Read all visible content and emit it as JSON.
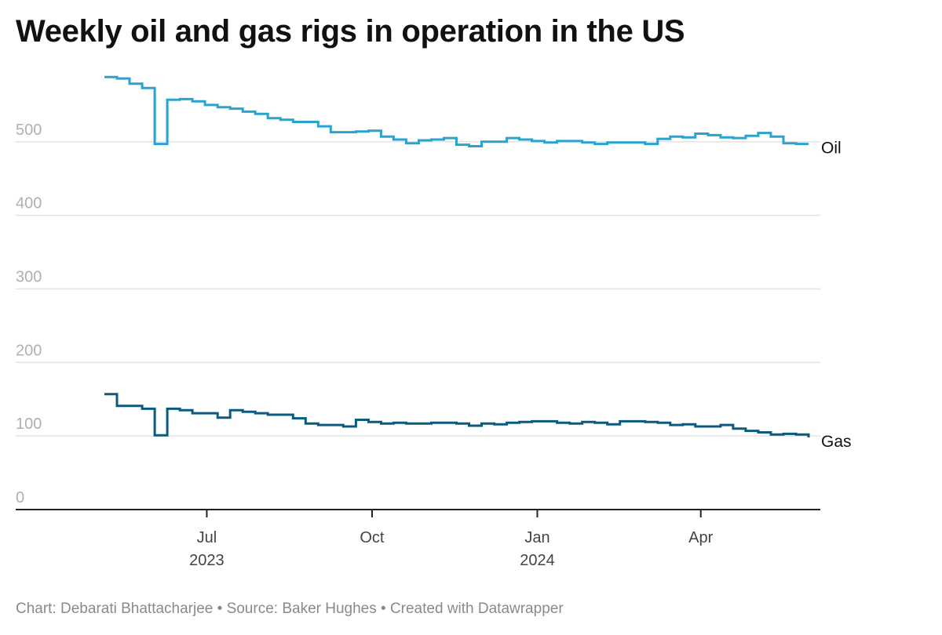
{
  "chart_data": {
    "type": "line",
    "title": "Weekly oil and gas rigs in operation in the US",
    "xlabel": "",
    "ylabel": "",
    "ylim": [
      0,
      600
    ],
    "yticks": [
      0,
      100,
      200,
      300,
      400,
      500
    ],
    "x_range": [
      "2023-05-05",
      "2024-05-31"
    ],
    "x_ticks": [
      {
        "date": "2023-07-01",
        "label": "Jul",
        "year": "2023"
      },
      {
        "date": "2023-10-01",
        "label": "Oct",
        "year": ""
      },
      {
        "date": "2024-01-01",
        "label": "Jan",
        "year": "2024"
      },
      {
        "date": "2024-04-01",
        "label": "Apr",
        "year": ""
      }
    ],
    "series": [
      {
        "name": "Oil",
        "color": "#2aa3cf",
        "step": true,
        "dates": [
          "2023-05-05",
          "2023-05-12",
          "2023-05-19",
          "2023-05-26",
          "2023-06-02",
          "2023-06-09",
          "2023-06-16",
          "2023-06-23",
          "2023-06-30",
          "2023-07-07",
          "2023-07-14",
          "2023-07-21",
          "2023-07-28",
          "2023-08-04",
          "2023-08-11",
          "2023-08-18",
          "2023-08-25",
          "2023-09-01",
          "2023-09-08",
          "2023-09-15",
          "2023-09-22",
          "2023-09-29",
          "2023-10-06",
          "2023-10-13",
          "2023-10-20",
          "2023-10-27",
          "2023-11-03",
          "2023-11-10",
          "2023-11-17",
          "2023-11-24",
          "2023-12-01",
          "2023-12-08",
          "2023-12-15",
          "2023-12-22",
          "2023-12-29",
          "2024-01-05",
          "2024-01-12",
          "2024-01-19",
          "2024-01-26",
          "2024-02-02",
          "2024-02-09",
          "2024-02-16",
          "2024-02-23",
          "2024-03-01",
          "2024-03-08",
          "2024-03-15",
          "2024-03-22",
          "2024-03-29",
          "2024-04-05",
          "2024-04-12",
          "2024-04-19",
          "2024-04-26",
          "2024-05-03",
          "2024-05-10",
          "2024-05-17",
          "2024-05-24",
          "2024-05-31"
        ],
        "values": [
          588,
          586,
          579,
          573,
          497,
          557,
          558,
          555,
          550,
          547,
          545,
          541,
          538,
          532,
          530,
          527,
          527,
          521,
          513,
          513,
          514,
          515,
          507,
          503,
          498,
          502,
          503,
          505,
          496,
          494,
          500,
          500,
          505,
          503,
          501,
          499,
          501,
          501,
          499,
          497,
          499,
          499,
          499,
          497,
          504,
          507,
          506,
          511,
          509,
          506,
          505,
          508,
          512,
          507,
          498,
          497,
          497
        ]
      },
      {
        "name": "Gas",
        "color": "#0d5a7f",
        "step": true,
        "dates": [
          "2023-05-05",
          "2023-05-12",
          "2023-05-19",
          "2023-05-26",
          "2023-06-02",
          "2023-06-09",
          "2023-06-16",
          "2023-06-23",
          "2023-06-30",
          "2023-07-07",
          "2023-07-14",
          "2023-07-21",
          "2023-07-28",
          "2023-08-04",
          "2023-08-11",
          "2023-08-18",
          "2023-08-25",
          "2023-09-01",
          "2023-09-08",
          "2023-09-15",
          "2023-09-22",
          "2023-09-29",
          "2023-10-06",
          "2023-10-13",
          "2023-10-20",
          "2023-10-27",
          "2023-11-03",
          "2023-11-10",
          "2023-11-17",
          "2023-11-24",
          "2023-12-01",
          "2023-12-08",
          "2023-12-15",
          "2023-12-22",
          "2023-12-29",
          "2024-01-05",
          "2024-01-12",
          "2024-01-19",
          "2024-01-26",
          "2024-02-02",
          "2024-02-09",
          "2024-02-16",
          "2024-02-23",
          "2024-03-01",
          "2024-03-08",
          "2024-03-15",
          "2024-03-22",
          "2024-03-29",
          "2024-04-05",
          "2024-04-12",
          "2024-04-19",
          "2024-04-26",
          "2024-05-03",
          "2024-05-10",
          "2024-05-17",
          "2024-05-24",
          "2024-05-31"
        ],
        "values": [
          157,
          141,
          141,
          137,
          101,
          137,
          135,
          131,
          131,
          125,
          135,
          133,
          131,
          129,
          129,
          124,
          117,
          115,
          115,
          113,
          122,
          119,
          117,
          118,
          117,
          117,
          118,
          118,
          117,
          114,
          117,
          116,
          118,
          119,
          120,
          120,
          118,
          117,
          119,
          118,
          116,
          120,
          120,
          119,
          118,
          115,
          116,
          113,
          113,
          115,
          110,
          107,
          105,
          102,
          103,
          102,
          98
        ]
      }
    ]
  },
  "footer": {
    "credit": "Chart: Debarati Bhattacharjee • Source: Baker Hughes • Created with Datawrapper"
  }
}
